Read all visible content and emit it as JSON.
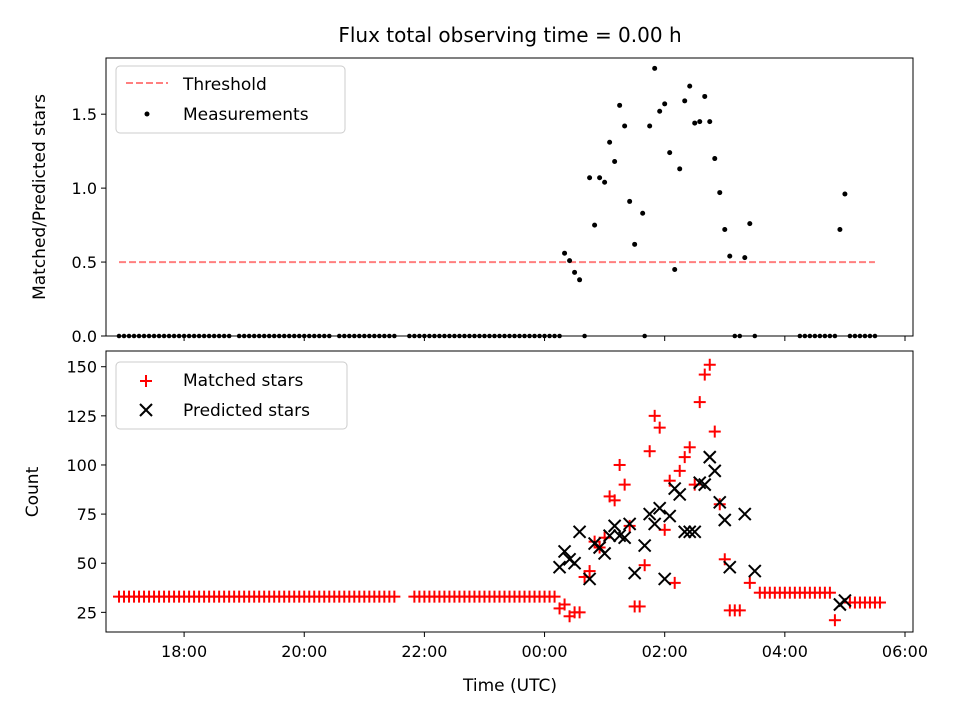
{
  "chart_data": [
    {
      "type": "scatter",
      "title": "Flux total observing time = 0.00 h",
      "xlabel": "",
      "ylabel": "Matched/Predicted stars",
      "xlim": [
        "16:42",
        "06:08"
      ],
      "ylim": [
        0,
        1.88
      ],
      "yticks": [
        0.0,
        0.5,
        1.0,
        1.5
      ],
      "ytick_labels": [
        "0.0",
        "0.5",
        "1.0",
        "1.5"
      ],
      "legend_position": "top-left",
      "threshold": {
        "name": "Threshold",
        "value": 0.5,
        "x_range": [
          "16:55",
          "05:30"
        ],
        "color": "#ff7f7f"
      },
      "series": [
        {
          "name": "Measurements",
          "color": "#000000",
          "marker": "dot",
          "points": [
            [
              "00:20",
              0.56
            ],
            [
              "00:25",
              0.51
            ],
            [
              "00:30",
              0.43
            ],
            [
              "00:35",
              0.38
            ],
            [
              "00:45",
              1.07
            ],
            [
              "00:50",
              0.75
            ],
            [
              "00:55",
              1.07
            ],
            [
              "01:00",
              1.04
            ],
            [
              "01:05",
              1.31
            ],
            [
              "01:10",
              1.18
            ],
            [
              "01:15",
              1.56
            ],
            [
              "01:20",
              1.42
            ],
            [
              "01:25",
              0.91
            ],
            [
              "01:30",
              0.62
            ],
            [
              "01:38",
              0.83
            ],
            [
              "01:45",
              1.42
            ],
            [
              "01:50",
              1.81
            ],
            [
              "01:55",
              1.52
            ],
            [
              "02:00",
              1.57
            ],
            [
              "02:05",
              1.24
            ],
            [
              "02:10",
              0.45
            ],
            [
              "02:15",
              1.13
            ],
            [
              "02:20",
              1.59
            ],
            [
              "02:25",
              1.69
            ],
            [
              "02:30",
              1.44
            ],
            [
              "02:35",
              1.45
            ],
            [
              "02:40",
              1.62
            ],
            [
              "02:45",
              1.45
            ],
            [
              "02:50",
              1.2
            ],
            [
              "02:55",
              0.97
            ],
            [
              "03:00",
              0.72
            ],
            [
              "03:05",
              0.54
            ],
            [
              "03:20",
              0.53
            ],
            [
              "03:25",
              0.76
            ],
            [
              "04:55",
              0.72
            ],
            [
              "05:00",
              0.96
            ]
          ],
          "zero_points": [
            [
              "16:55",
              "17:05"
            ],
            [
              "17:10",
              "17:30"
            ],
            [
              "17:35",
              "18:15"
            ],
            [
              "18:20",
              "18:45"
            ],
            [
              "18:55",
              "19:35"
            ],
            [
              "19:40",
              "20:25"
            ],
            [
              "20:35",
              "21:00"
            ],
            [
              "21:05",
              "21:30"
            ],
            [
              "21:45",
              "22:00"
            ],
            [
              "22:05",
              "23:00"
            ],
            [
              "23:05",
              "23:55"
            ],
            [
              "00:00",
              "00:15"
            ],
            [
              "00:40",
              "00:40"
            ],
            [
              "01:40",
              "01:40"
            ],
            [
              "03:10",
              "03:15"
            ],
            [
              "03:30",
              "03:30"
            ],
            [
              "04:15",
              "04:30"
            ],
            [
              "04:35",
              "04:50"
            ],
            [
              "05:05",
              "05:30"
            ]
          ]
        }
      ]
    },
    {
      "type": "scatter",
      "title": "",
      "xlabel": "Time (UTC)",
      "ylabel": "Count",
      "xlim": [
        "16:42",
        "06:08"
      ],
      "ylim": [
        15,
        158
      ],
      "yticks": [
        25,
        50,
        75,
        100,
        125,
        150
      ],
      "ytick_labels": [
        "25",
        "50",
        "75",
        "100",
        "125",
        "150"
      ],
      "xticks": [
        "18:00",
        "20:00",
        "22:00",
        "00:00",
        "02:00",
        "04:00",
        "06:00"
      ],
      "xtick_labels": [
        "18:00",
        "20:00",
        "22:00",
        "00:00",
        "02:00",
        "04:00",
        "06:00"
      ],
      "legend_position": "top-left",
      "series": [
        {
          "name": "Matched stars",
          "color": "#ff0000",
          "marker": "plus",
          "flat_runs": [
            {
              "value": 33,
              "from": "16:55",
              "to": "00:10"
            },
            {
              "value": 35,
              "from": "03:35",
              "to": "04:45"
            },
            {
              "value": 30,
              "from": "05:05",
              "to": "05:35"
            }
          ],
          "flat_gaps": [
            [
              "21:35",
              "21:45"
            ]
          ],
          "points": [
            [
              "00:15",
              27
            ],
            [
              "00:20",
              29
            ],
            [
              "00:25",
              23
            ],
            [
              "00:30",
              25
            ],
            [
              "00:35",
              25
            ],
            [
              "00:40",
              43
            ],
            [
              "00:45",
              46
            ],
            [
              "00:50",
              61
            ],
            [
              "00:55",
              58
            ],
            [
              "01:00",
              63
            ],
            [
              "01:05",
              84
            ],
            [
              "01:10",
              82
            ],
            [
              "01:15",
              100
            ],
            [
              "01:20",
              90
            ],
            [
              "01:25",
              69
            ],
            [
              "01:30",
              28
            ],
            [
              "01:35",
              28
            ],
            [
              "01:40",
              49
            ],
            [
              "01:45",
              107
            ],
            [
              "01:50",
              125
            ],
            [
              "01:55",
              119
            ],
            [
              "02:00",
              67
            ],
            [
              "02:05",
              92
            ],
            [
              "02:10",
              40
            ],
            [
              "02:15",
              97
            ],
            [
              "02:20",
              104
            ],
            [
              "02:25",
              109
            ],
            [
              "02:30",
              90
            ],
            [
              "02:35",
              132
            ],
            [
              "02:40",
              146
            ],
            [
              "02:45",
              151
            ],
            [
              "02:50",
              117
            ],
            [
              "02:55",
              80
            ],
            [
              "03:00",
              52
            ],
            [
              "03:05",
              26
            ],
            [
              "03:10",
              26
            ],
            [
              "03:15",
              26
            ],
            [
              "03:25",
              40
            ],
            [
              "04:50",
              21
            ]
          ]
        },
        {
          "name": "Predicted stars",
          "color": "#000000",
          "marker": "x",
          "points": [
            [
              "00:15",
              48
            ],
            [
              "00:20",
              56
            ],
            [
              "00:25",
              52
            ],
            [
              "00:30",
              50
            ],
            [
              "00:35",
              66
            ],
            [
              "00:45",
              42
            ],
            [
              "00:50",
              60
            ],
            [
              "00:55",
              58
            ],
            [
              "01:00",
              55
            ],
            [
              "01:05",
              64
            ],
            [
              "01:10",
              69
            ],
            [
              "01:15",
              64
            ],
            [
              "01:20",
              63
            ],
            [
              "01:25",
              70
            ],
            [
              "01:30",
              45
            ],
            [
              "01:40",
              59
            ],
            [
              "01:45",
              75
            ],
            [
              "01:50",
              70
            ],
            [
              "01:55",
              78
            ],
            [
              "02:00",
              42
            ],
            [
              "02:05",
              74
            ],
            [
              "02:10",
              88
            ],
            [
              "02:15",
              85
            ],
            [
              "02:20",
              66
            ],
            [
              "02:25",
              66
            ],
            [
              "02:30",
              66
            ],
            [
              "02:35",
              91
            ],
            [
              "02:40",
              90
            ],
            [
              "02:45",
              104
            ],
            [
              "02:50",
              97
            ],
            [
              "02:55",
              81
            ],
            [
              "03:00",
              72
            ],
            [
              "03:05",
              48
            ],
            [
              "03:20",
              75
            ],
            [
              "03:30",
              46
            ],
            [
              "04:55",
              29
            ],
            [
              "05:00",
              31
            ]
          ]
        }
      ]
    }
  ]
}
